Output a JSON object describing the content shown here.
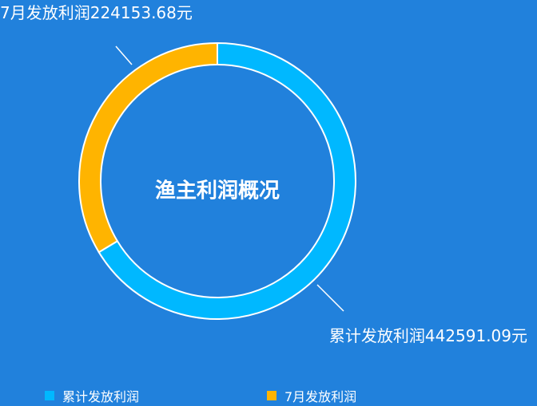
{
  "chart_data": {
    "type": "pie",
    "style": "donut",
    "title": "渔主利润概况",
    "slices": [
      {
        "name": "累计发放利润",
        "value": 442591.09,
        "label": "累计发放利润442591.09元",
        "color": "#00b8ff"
      },
      {
        "name": "7月发放利润",
        "value": 224153.68,
        "label": "7月发放利润224153.68元",
        "color": "#ffb400"
      }
    ],
    "legend": {
      "position": "bottom",
      "items": [
        "累计发放利润",
        "7月发放利润"
      ]
    }
  }
}
